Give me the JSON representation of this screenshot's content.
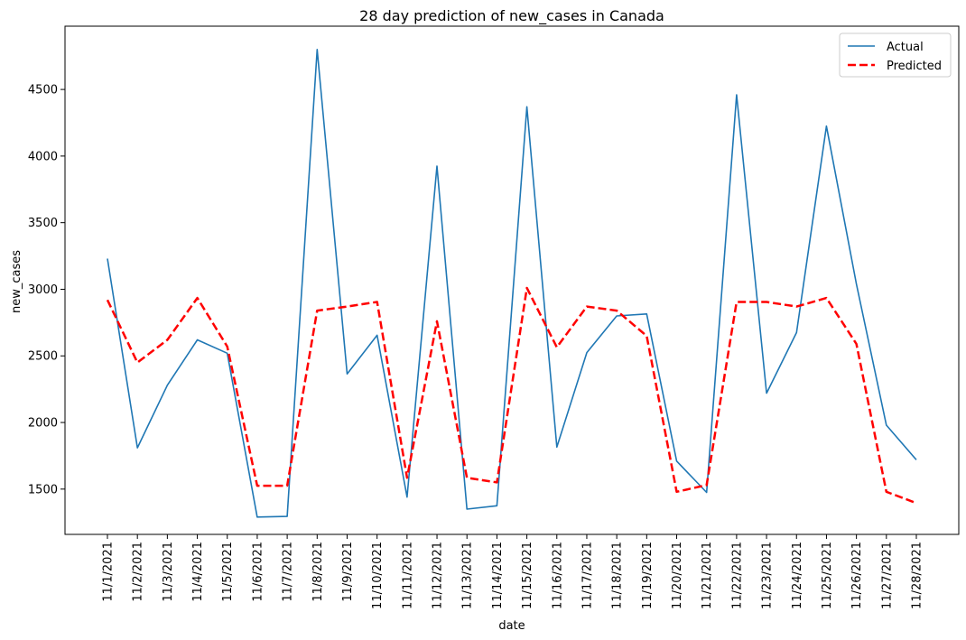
{
  "chart_data": {
    "type": "line",
    "title": "28 day prediction of new_cases in Canada",
    "xlabel": "date",
    "ylabel": "new_cases",
    "categories": [
      "11/1/2021",
      "11/2/2021",
      "11/3/2021",
      "11/4/2021",
      "11/5/2021",
      "11/6/2021",
      "11/7/2021",
      "11/8/2021",
      "11/9/2021",
      "11/10/2021",
      "11/11/2021",
      "11/12/2021",
      "11/13/2021",
      "11/14/2021",
      "11/15/2021",
      "11/16/2021",
      "11/17/2021",
      "11/18/2021",
      "11/19/2021",
      "11/20/2021",
      "11/21/2021",
      "11/22/2021",
      "11/23/2021",
      "11/24/2021",
      "11/25/2021",
      "11/26/2021",
      "11/27/2021",
      "11/28/2021"
    ],
    "y_ticks": [
      1500,
      2000,
      2500,
      3000,
      3500,
      4000,
      4500
    ],
    "ylim": [
      1160,
      4975
    ],
    "grid": false,
    "legend_position": "top-right",
    "series": [
      {
        "name": "Actual",
        "color": "#1f77b4",
        "style": "solid",
        "values": [
          3230,
          1810,
          2280,
          2620,
          2520,
          1290,
          1295,
          4800,
          2365,
          2655,
          1440,
          3925,
          1350,
          1375,
          4370,
          1815,
          2525,
          2800,
          2815,
          1710,
          1475,
          4460,
          2220,
          2675,
          4225,
          3040,
          1980,
          1720
        ]
      },
      {
        "name": "Predicted",
        "color": "#ff0000",
        "style": "dashed",
        "values": [
          2920,
          2450,
          2620,
          2935,
          2570,
          1525,
          1525,
          2840,
          2870,
          2905,
          1585,
          2760,
          1585,
          1550,
          3010,
          2565,
          2870,
          2840,
          2650,
          1480,
          1530,
          2905,
          2905,
          2870,
          2935,
          2590,
          1480,
          1395
        ]
      }
    ]
  }
}
